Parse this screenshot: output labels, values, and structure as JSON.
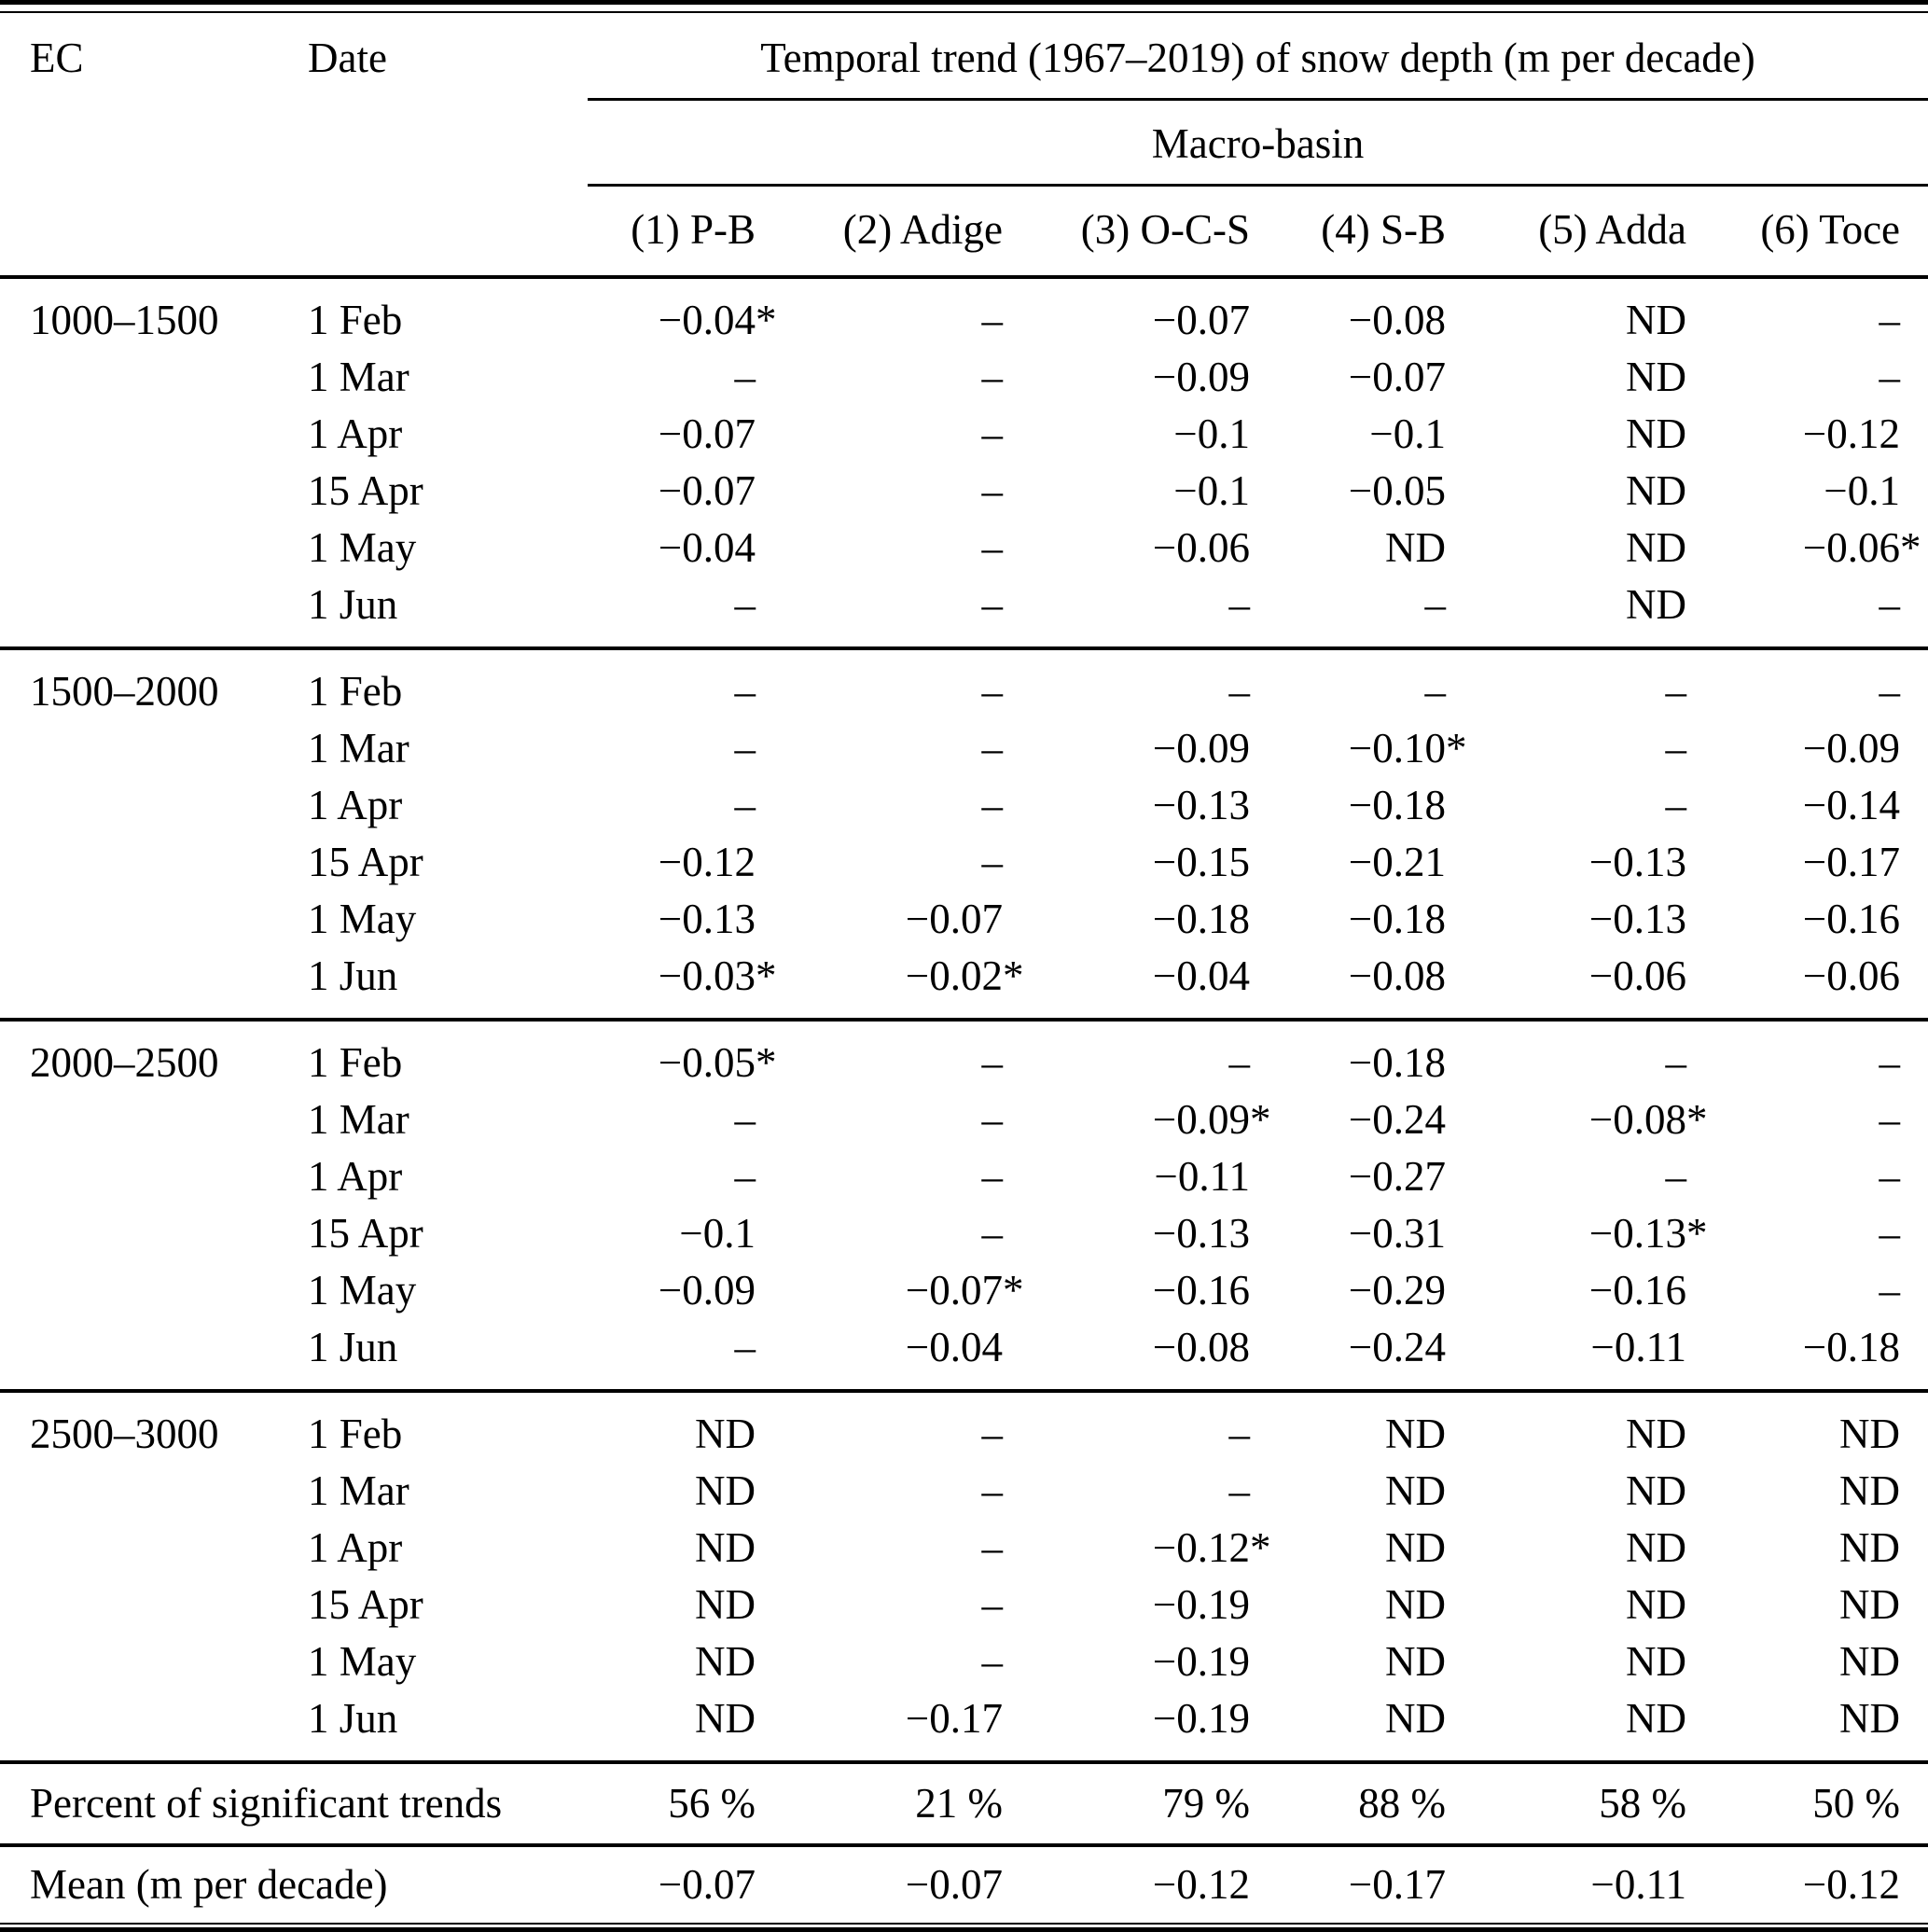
{
  "table": {
    "header": {
      "ec": "EC",
      "date": "Date",
      "span_title": "Temporal trend (1967–2019) of snow depth (m per decade)",
      "group_title": "Macro-basin",
      "columns": [
        "(1) P-B",
        "(2) Adige",
        "(3) O-C-S",
        "(4) S-B",
        "(5) Adda",
        "(6) Toce"
      ]
    },
    "blocks": [
      {
        "ec": "1000–1500",
        "rows": [
          {
            "date": "1 Feb",
            "values": [
              "−0.04*",
              "–",
              "−0.07",
              "−0.08",
              "ND",
              "–"
            ]
          },
          {
            "date": "1 Mar",
            "values": [
              "–",
              "–",
              "−0.09",
              "−0.07",
              "ND",
              "–"
            ]
          },
          {
            "date": "1 Apr",
            "values": [
              "−0.07",
              "–",
              "−0.1",
              "−0.1",
              "ND",
              "−0.12"
            ]
          },
          {
            "date": "15 Apr",
            "values": [
              "−0.07",
              "–",
              "−0.1",
              "−0.05",
              "ND",
              "−0.1"
            ]
          },
          {
            "date": "1 May",
            "values": [
              "−0.04",
              "–",
              "−0.06",
              "ND",
              "ND",
              "−0.06*"
            ]
          },
          {
            "date": "1 Jun",
            "values": [
              "–",
              "–",
              "–",
              "–",
              "ND",
              "–"
            ]
          }
        ]
      },
      {
        "ec": "1500–2000",
        "rows": [
          {
            "date": "1 Feb",
            "values": [
              "–",
              "–",
              "–",
              "–",
              "–",
              "–"
            ]
          },
          {
            "date": "1 Mar",
            "values": [
              "–",
              "–",
              "−0.09",
              "−0.10*",
              "–",
              "−0.09"
            ]
          },
          {
            "date": "1 Apr",
            "values": [
              "–",
              "–",
              "−0.13",
              "−0.18",
              "–",
              "−0.14"
            ]
          },
          {
            "date": "15 Apr",
            "values": [
              "−0.12",
              "–",
              "−0.15",
              "−0.21",
              "−0.13",
              "−0.17"
            ]
          },
          {
            "date": "1 May",
            "values": [
              "−0.13",
              "−0.07",
              "−0.18",
              "−0.18",
              "−0.13",
              "−0.16"
            ]
          },
          {
            "date": "1 Jun",
            "values": [
              "−0.03*",
              "−0.02*",
              "−0.04",
              "−0.08",
              "−0.06",
              "−0.06"
            ]
          }
        ]
      },
      {
        "ec": "2000–2500",
        "rows": [
          {
            "date": "1 Feb",
            "values": [
              "−0.05*",
              "–",
              "–",
              "−0.18",
              "–",
              "–"
            ]
          },
          {
            "date": "1 Mar",
            "values": [
              "–",
              "–",
              "−0.09*",
              "−0.24",
              "−0.08*",
              "–"
            ]
          },
          {
            "date": "1 Apr",
            "values": [
              "–",
              "–",
              "−0.11",
              "−0.27",
              "–",
              "–"
            ]
          },
          {
            "date": "15 Apr",
            "values": [
              "−0.1",
              "–",
              "−0.13",
              "−0.31",
              "−0.13*",
              "–"
            ]
          },
          {
            "date": "1 May",
            "values": [
              "−0.09",
              "−0.07*",
              "−0.16",
              "−0.29",
              "−0.16",
              "–"
            ]
          },
          {
            "date": "1 Jun",
            "values": [
              "–",
              "−0.04",
              "−0.08",
              "−0.24",
              "−0.11",
              "−0.18"
            ]
          }
        ]
      },
      {
        "ec": "2500–3000",
        "rows": [
          {
            "date": "1 Feb",
            "values": [
              "ND",
              "–",
              "–",
              "ND",
              "ND",
              "ND"
            ]
          },
          {
            "date": "1 Mar",
            "values": [
              "ND",
              "–",
              "–",
              "ND",
              "ND",
              "ND"
            ]
          },
          {
            "date": "1 Apr",
            "values": [
              "ND",
              "–",
              "−0.12*",
              "ND",
              "ND",
              "ND"
            ]
          },
          {
            "date": "15 Apr",
            "values": [
              "ND",
              "–",
              "−0.19",
              "ND",
              "ND",
              "ND"
            ]
          },
          {
            "date": "1 May",
            "values": [
              "ND",
              "–",
              "−0.19",
              "ND",
              "ND",
              "ND"
            ]
          },
          {
            "date": "1 Jun",
            "values": [
              "ND",
              "−0.17",
              "−0.19",
              "ND",
              "ND",
              "ND"
            ]
          }
        ]
      }
    ],
    "footer": {
      "percent_label": "Percent of significant trends",
      "percent_values": [
        "56 %",
        "21 %",
        "79 %",
        "88 %",
        "58 %",
        "50 %"
      ],
      "mean_label": "Mean (m per decade)",
      "mean_values": [
        "−0.07",
        "−0.07",
        "−0.12",
        "−0.17",
        "−0.11",
        "−0.12"
      ]
    }
  }
}
